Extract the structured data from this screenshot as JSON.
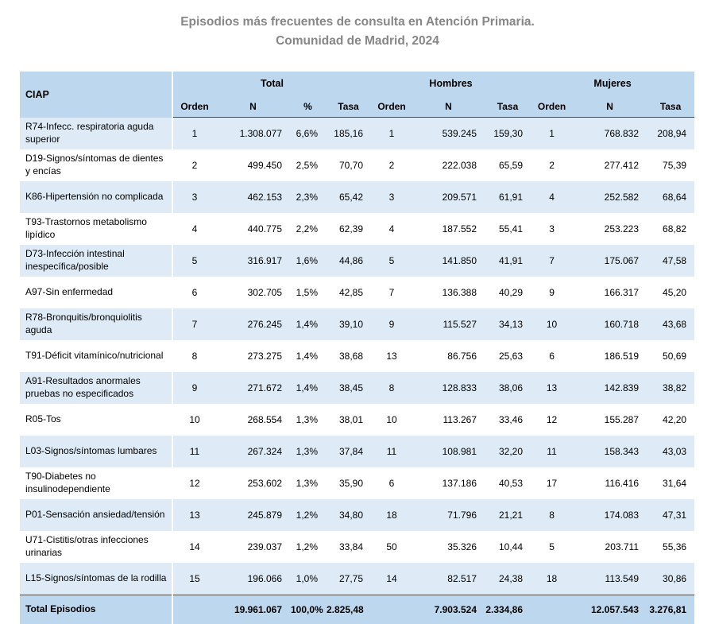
{
  "colors": {
    "header_bg": "#BDD7EE",
    "stripe_bg": "#DEEBF7",
    "total_row_bg": "#BDD7EE",
    "title_text": "#878787",
    "dark_border": "#4a4a4a"
  },
  "chart_data": {
    "type": "table",
    "title_lines": [
      "Episodios más frecuentes de consulta en Atención Primaria.",
      "Comunidad de Madrid, 2024"
    ],
    "corner_header": "CIAP",
    "column_groups": [
      {
        "label": "Total",
        "subcolumns": [
          "Orden",
          "N",
          "%",
          "Tasa"
        ]
      },
      {
        "label": "Hombres",
        "subcolumns": [
          "Orden",
          "N",
          "Tasa"
        ]
      },
      {
        "label": "Mujeres",
        "subcolumns": [
          "Orden",
          "N",
          "Tasa"
        ]
      }
    ],
    "rows": [
      [
        "R74-Infecc. respiratoria aguda superior",
        "1",
        "1.308.077",
        "6,6%",
        "185,16",
        "1",
        "539.245",
        "159,30",
        "1",
        "768.832",
        "208,94"
      ],
      [
        "D19-Signos/síntomas de dientes y encías",
        "2",
        "499.450",
        "2,5%",
        "70,70",
        "2",
        "222.038",
        "65,59",
        "2",
        "277.412",
        "75,39"
      ],
      [
        "K86-Hipertensión no complicada",
        "3",
        "462.153",
        "2,3%",
        "65,42",
        "3",
        "209.571",
        "61,91",
        "4",
        "252.582",
        "68,64"
      ],
      [
        "T93-Trastornos metabolismo lipídico",
        "4",
        "440.775",
        "2,2%",
        "62,39",
        "4",
        "187.552",
        "55,41",
        "3",
        "253.223",
        "68,82"
      ],
      [
        "D73-Infección intestinal inespecífica/posible",
        "5",
        "316.917",
        "1,6%",
        "44,86",
        "5",
        "141.850",
        "41,91",
        "7",
        "175.067",
        "47,58"
      ],
      [
        "A97-Sin enfermedad",
        "6",
        "302.705",
        "1,5%",
        "42,85",
        "7",
        "136.388",
        "40,29",
        "9",
        "166.317",
        "45,20"
      ],
      [
        "R78-Bronquitis/bronquiolitis aguda",
        "7",
        "276.245",
        "1,4%",
        "39,10",
        "9",
        "115.527",
        "34,13",
        "10",
        "160.718",
        "43,68"
      ],
      [
        "T91-Déficit vitamínico/nutricional",
        "8",
        "273.275",
        "1,4%",
        "38,68",
        "13",
        "86.756",
        "25,63",
        "6",
        "186.519",
        "50,69"
      ],
      [
        "A91-Resultados anormales pruebas no especificados",
        "9",
        "271.672",
        "1,4%",
        "38,45",
        "8",
        "128.833",
        "38,06",
        "13",
        "142.839",
        "38,82"
      ],
      [
        "R05-Tos",
        "10",
        "268.554",
        "1,3%",
        "38,01",
        "10",
        "113.267",
        "33,46",
        "12",
        "155.287",
        "42,20"
      ],
      [
        "L03-Signos/síntomas lumbares",
        "11",
        "267.324",
        "1,3%",
        "37,84",
        "11",
        "108.981",
        "32,20",
        "11",
        "158.343",
        "43,03"
      ],
      [
        "T90-Diabetes no insulinodependiente",
        "12",
        "253.602",
        "1,3%",
        "35,90",
        "6",
        "137.186",
        "40,53",
        "17",
        "116.416",
        "31,64"
      ],
      [
        "P01-Sensación ansiedad/tensión",
        "13",
        "245.879",
        "1,2%",
        "34,80",
        "18",
        "71.796",
        "21,21",
        "8",
        "174.083",
        "47,31"
      ],
      [
        "U71-Cistitis/otras infecciones urinarias",
        "14",
        "239.037",
        "1,2%",
        "33,84",
        "50",
        "35.326",
        "10,44",
        "5",
        "203.711",
        "55,36"
      ],
      [
        "L15-Signos/síntomas de la rodilla",
        "15",
        "196.066",
        "1,0%",
        "27,75",
        "14",
        "82.517",
        "24,38",
        "18",
        "113.549",
        "30,86"
      ]
    ],
    "total_row": [
      "Total Episodios",
      "",
      "19.961.067",
      "100,0%",
      "2.825,48",
      "",
      "7.903.524",
      "2.334,86",
      "",
      "12.057.543",
      "3.276,81"
    ]
  }
}
